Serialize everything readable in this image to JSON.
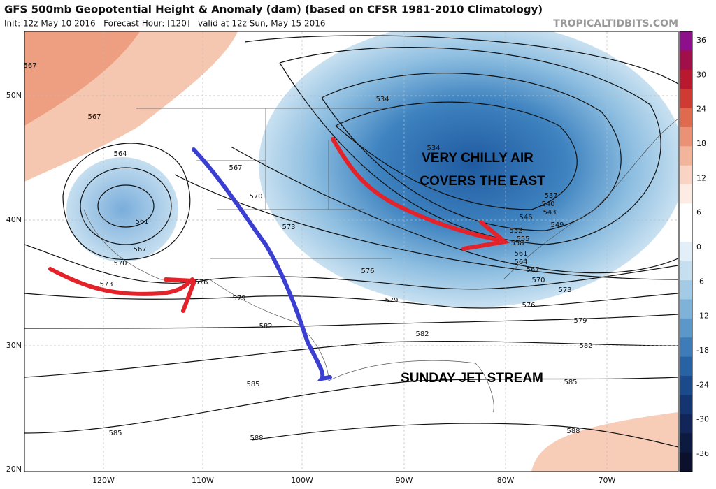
{
  "header": {
    "title": "GFS 500mb Geopotential Height & Anomaly (dam) (based on CFSR 1981-2010 Climatology)",
    "subtitle": "Init: 12z May 10 2016   Forecast Hour: [120]   valid at 12z Sun, May 15 2016",
    "source": "TROPICALTIDBITS.COM"
  },
  "colorbar": {
    "ticks": [
      "36",
      "30",
      "24",
      "18",
      "12",
      "6",
      "0",
      "-6",
      "-12",
      "-18",
      "-24",
      "-30",
      "-36"
    ]
  },
  "latitude_labels": [
    "50N",
    "40N",
    "30N",
    "20N"
  ],
  "longitude_labels": [
    "120W",
    "110W",
    "100W",
    "90W",
    "80W",
    "70W"
  ],
  "contour_labels": [
    "567",
    "567",
    "564",
    "561",
    "567",
    "570",
    "573",
    "576",
    "567",
    "570",
    "573",
    "576",
    "579",
    "582",
    "579",
    "582",
    "585",
    "588",
    "585",
    "534",
    "534",
    "537",
    "540",
    "543",
    "546",
    "549",
    "552",
    "555",
    "558",
    "561",
    "564",
    "567",
    "570",
    "573",
    "576",
    "579",
    "582",
    "585",
    "588"
  ],
  "annotations": [
    "VERY CHILLY AIR",
    "COVERS THE EAST",
    "SUNDAY JET STREAM"
  ]
}
